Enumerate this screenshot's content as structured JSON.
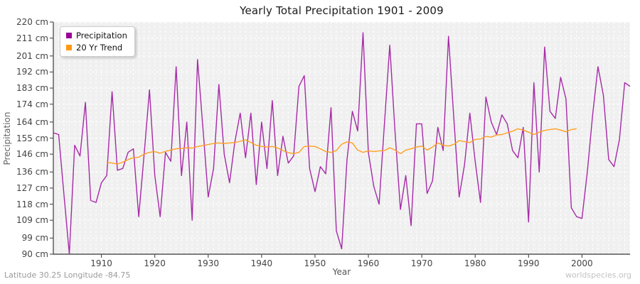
{
  "title": "Yearly Total Precipitation 1901 - 2009",
  "x_axis": {
    "label": "Year",
    "ticks": [
      1910,
      1920,
      1930,
      1940,
      1950,
      1960,
      1970,
      1980,
      1990,
      2000
    ]
  },
  "y_axis": {
    "label": "Precipitation",
    "tick_labels": [
      "220 cm",
      "211 cm",
      "201 cm",
      "192 cm",
      "183 cm",
      "174 cm",
      "164 cm",
      "155 cm",
      "146 cm",
      "136 cm",
      "127 cm",
      "118 cm",
      "109 cm",
      "99 cm",
      "90 cm"
    ]
  },
  "legend": {
    "items": [
      {
        "label": "Precipitation",
        "color": "#990099"
      },
      {
        "label": "20 Yr Trend",
        "color": "#ff9913"
      }
    ]
  },
  "footer": {
    "left": "Latitude 30.25 Longitude -84.75",
    "right": "worldspecies.org"
  },
  "colors": {
    "plot_bg": "#f0f0f0",
    "grid": "#ffffff",
    "axis": "#555555",
    "precip_line": "#a62aa8",
    "trend_line": "#ffa021"
  },
  "chart_data": {
    "type": "line",
    "title": "Yearly Total Precipitation 1901 - 2009",
    "xlabel": "Year",
    "ylabel": "Precipitation",
    "x_range": [
      1901,
      2009
    ],
    "y_range": [
      90,
      220
    ],
    "y_unit": "cm",
    "grid": true,
    "legend_position": "top-left",
    "series": [
      {
        "name": "Precipitation",
        "color": "#a62aa8",
        "x_start": 1901,
        "values": [
          158,
          157,
          123,
          90,
          151,
          145,
          175,
          120,
          119,
          130,
          134,
          181,
          137,
          138,
          147,
          149,
          111,
          146,
          182,
          134,
          111,
          147,
          142,
          195,
          134,
          164,
          109,
          199,
          161,
          122,
          138,
          185,
          146,
          130,
          153,
          169,
          144,
          169,
          129,
          164,
          138,
          176,
          134,
          156,
          141,
          145,
          184,
          190,
          138,
          125,
          139,
          135,
          172,
          103,
          93,
          143,
          170,
          159,
          214,
          147,
          128,
          118,
          163,
          207,
          158,
          115,
          134,
          106,
          163,
          163,
          124,
          131,
          161,
          148,
          212,
          166,
          122,
          140,
          169,
          142,
          119,
          178,
          164,
          157,
          168,
          163,
          148,
          144,
          161,
          108,
          186,
          136,
          206,
          170,
          166,
          189,
          177,
          116,
          111,
          110,
          136,
          168,
          195,
          179,
          143,
          139,
          154,
          186,
          184
        ]
      },
      {
        "name": "20 Yr Trend",
        "color": "#ffa021",
        "x_start": 1911,
        "values": [
          141.5,
          141,
          140.5,
          141.5,
          143,
          144,
          144.3,
          146,
          147,
          147.4,
          146.5,
          147.6,
          148.3,
          149,
          149.2,
          149.6,
          149.4,
          150.3,
          150.8,
          151.4,
          152,
          152.3,
          152,
          152.3,
          152.5,
          153.2,
          154,
          152.5,
          151,
          150.3,
          150,
          150.3,
          149.5,
          148,
          146.9,
          146.3,
          147,
          150.3,
          150.5,
          150.3,
          149,
          147.5,
          147,
          148,
          151.6,
          152.9,
          152.3,
          148.3,
          147,
          147.9,
          147.5,
          147.8,
          148,
          149.6,
          148.3,
          146.3,
          148.3,
          149,
          150,
          150.5,
          148.3,
          150,
          152.3,
          151,
          150.5,
          151.5,
          153.6,
          153,
          152.5,
          154.3,
          154.5,
          155.9,
          155.5,
          156.7,
          157,
          158,
          158.9,
          160.2,
          159.5,
          158.3,
          157,
          158.3,
          159.3,
          159.8,
          160.2,
          159.5,
          158.5,
          159.8,
          160.2
        ]
      }
    ]
  }
}
